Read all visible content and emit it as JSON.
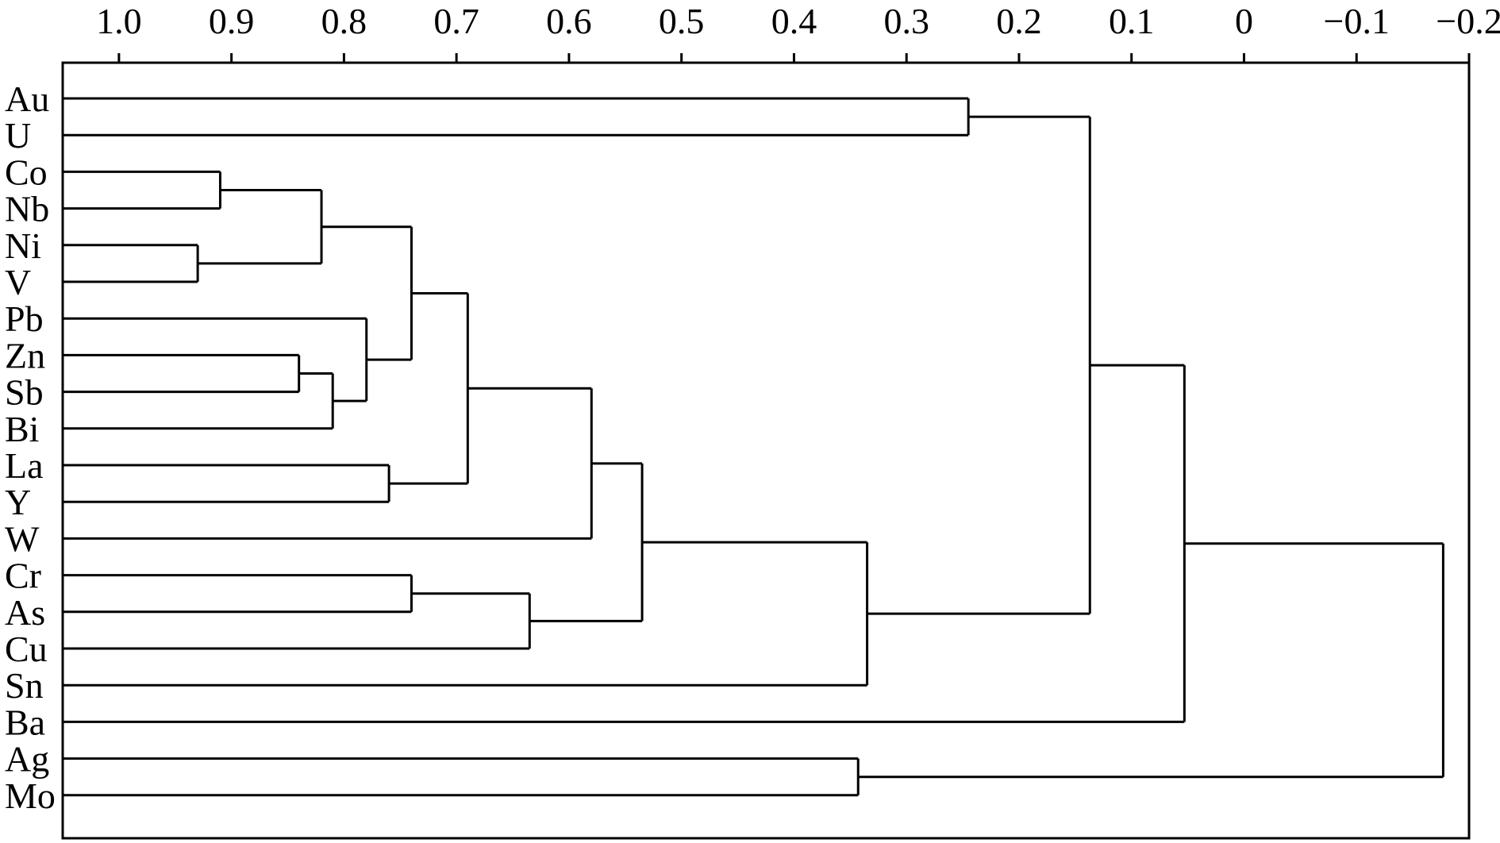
{
  "chart_data": {
    "type": "dendrogram",
    "title": "",
    "xlabel": "",
    "ylabel": "",
    "axis": {
      "position": "top",
      "reversed": true,
      "range": [
        1.05,
        -0.2
      ],
      "ticks": [
        1.0,
        0.9,
        0.8,
        0.7,
        0.6,
        0.5,
        0.4,
        0.3,
        0.2,
        0.1,
        0,
        -0.1,
        -0.2
      ],
      "tick_labels": [
        "1.0",
        "0.9",
        "0.8",
        "0.7",
        "0.6",
        "0.5",
        "0.4",
        "0.3",
        "0.2",
        "0.1",
        "0",
        "−0.1",
        "−0.2"
      ]
    },
    "leaves": [
      "Au",
      "U",
      "Co",
      "Nb",
      "Ni",
      "V",
      "Pb",
      "Zn",
      "Sb",
      "Bi",
      "La",
      "Y",
      "W",
      "Cr",
      "As",
      "Cu",
      "Sn",
      "Ba",
      "Ag",
      "Mo"
    ],
    "merges": [
      {
        "id": "n1",
        "children": [
          "Co",
          "Nb"
        ],
        "height": 0.91
      },
      {
        "id": "n2",
        "children": [
          "Ni",
          "V"
        ],
        "height": 0.93
      },
      {
        "id": "n3",
        "children": [
          "Zn",
          "Sb"
        ],
        "height": 0.84
      },
      {
        "id": "n4",
        "children": [
          "n3",
          "Bi"
        ],
        "height": 0.81
      },
      {
        "id": "n5",
        "children": [
          "Pb",
          "n4"
        ],
        "height": 0.78
      },
      {
        "id": "n6",
        "children": [
          "n1",
          "n2"
        ],
        "height": 0.82
      },
      {
        "id": "n7",
        "children": [
          "n6",
          "n5"
        ],
        "height": 0.74
      },
      {
        "id": "n8",
        "children": [
          "La",
          "Y"
        ],
        "height": 0.76
      },
      {
        "id": "n9",
        "children": [
          "n7",
          "n8"
        ],
        "height": 0.69
      },
      {
        "id": "n10",
        "children": [
          "n9",
          "W"
        ],
        "height": 0.58
      },
      {
        "id": "n11",
        "children": [
          "Cr",
          "As"
        ],
        "height": 0.74
      },
      {
        "id": "n12",
        "children": [
          "n11",
          "Cu"
        ],
        "height": 0.635
      },
      {
        "id": "n13",
        "children": [
          "n10",
          "n12"
        ],
        "height": 0.535
      },
      {
        "id": "n14",
        "children": [
          "n13",
          "Sn"
        ],
        "height": 0.335
      },
      {
        "id": "n15",
        "children": [
          "Au",
          "U"
        ],
        "height": 0.245
      },
      {
        "id": "n16",
        "children": [
          "n15",
          "n14"
        ],
        "height": 0.137
      },
      {
        "id": "n17",
        "children": [
          "n16",
          "Ba"
        ],
        "height": 0.053
      },
      {
        "id": "n18",
        "children": [
          "Ag",
          "Mo"
        ],
        "height": 0.343
      },
      {
        "id": "n19",
        "children": [
          "n17",
          "n18"
        ],
        "height": -0.177
      }
    ],
    "grid": false
  }
}
